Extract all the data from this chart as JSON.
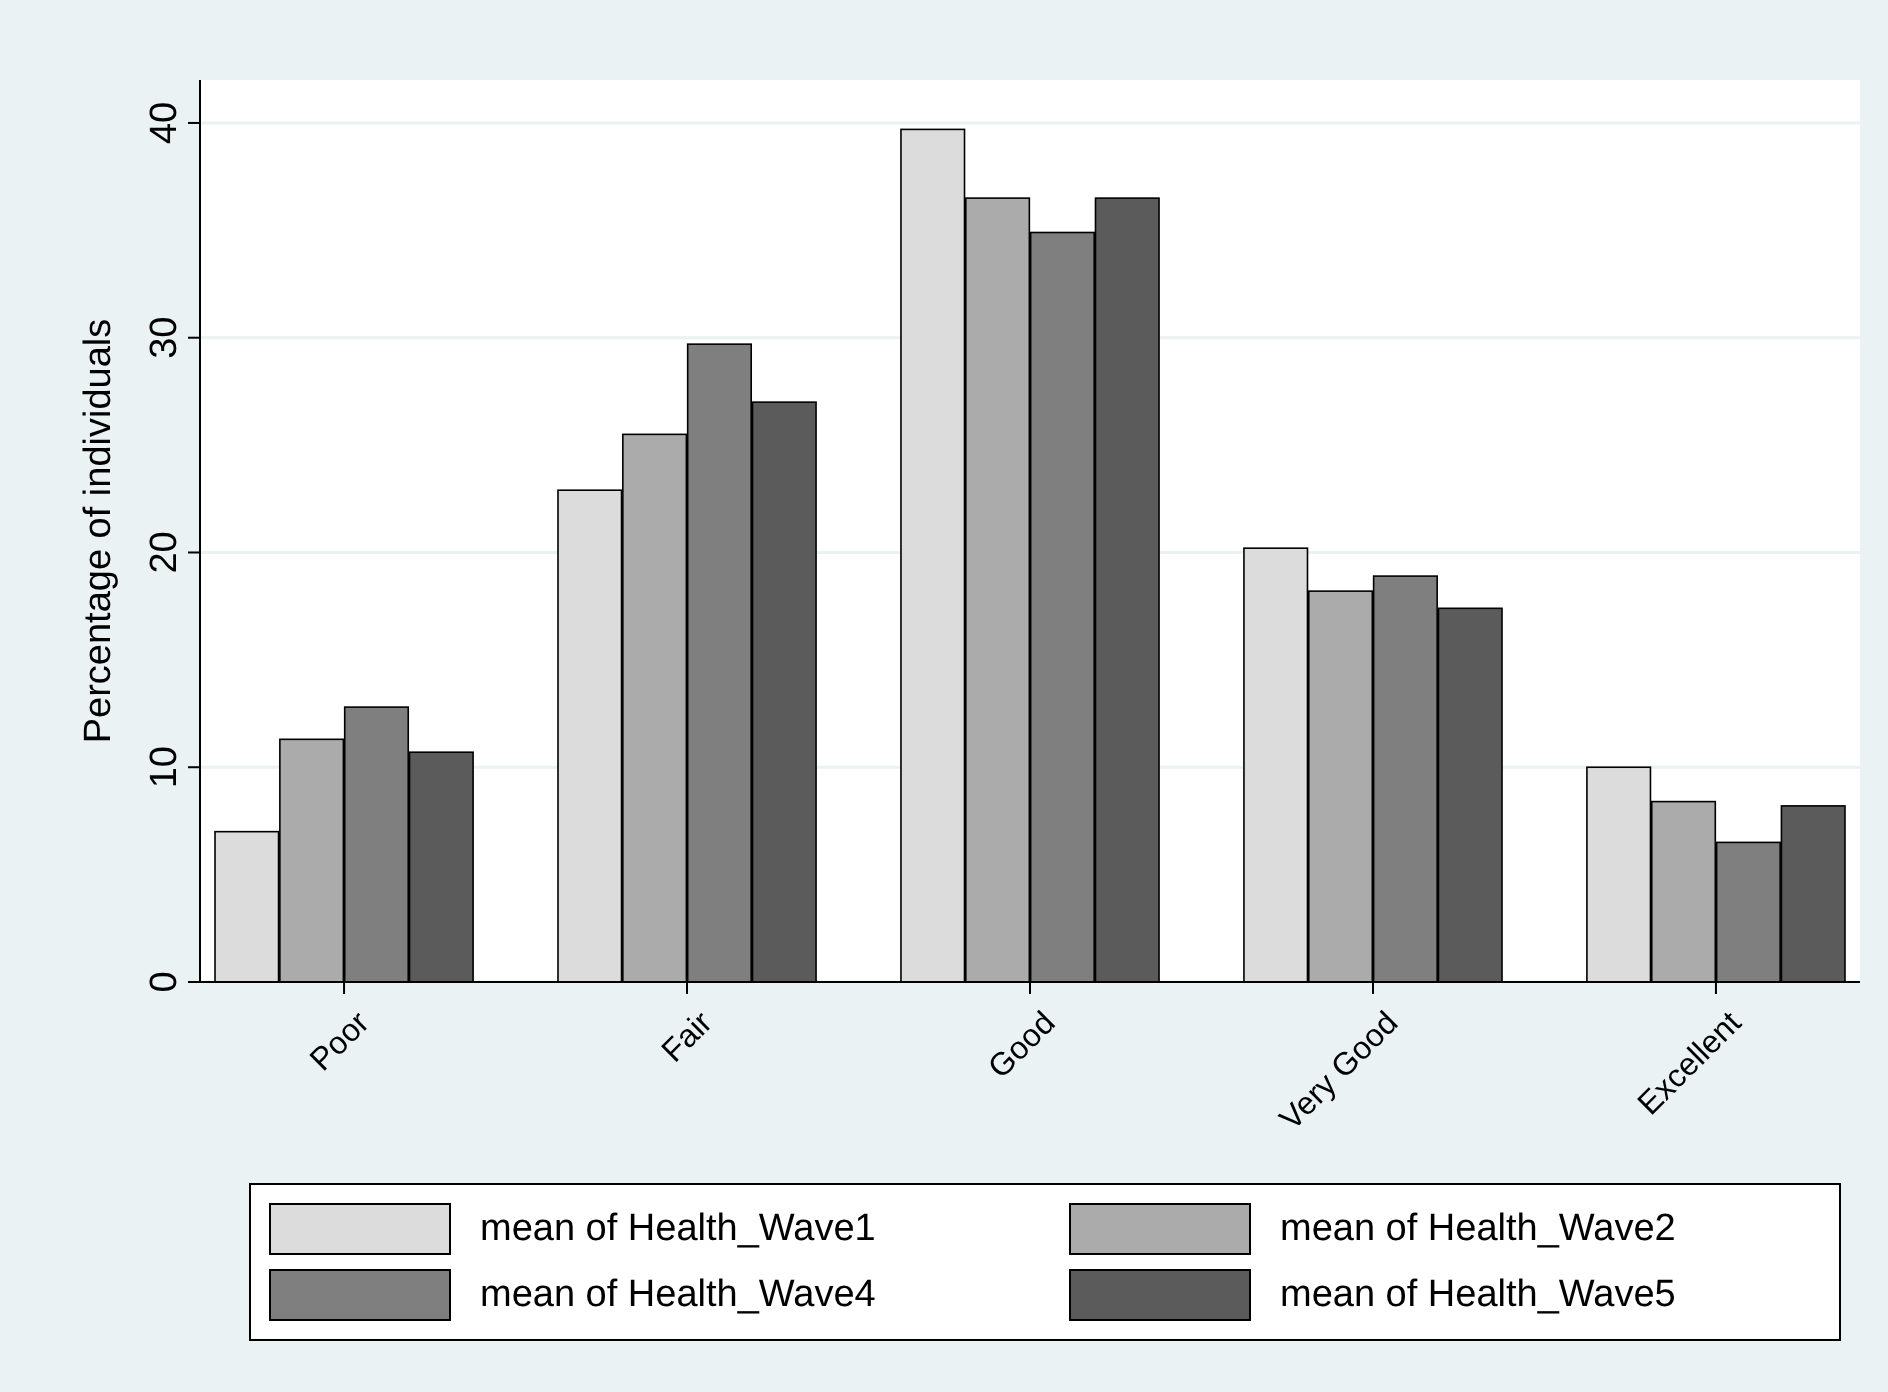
{
  "chart_data": {
    "type": "bar",
    "ylabel": "Percentage of individuals",
    "categories": [
      "Poor",
      "Fair",
      "Good",
      "Very Good",
      "Excellent"
    ],
    "series": [
      {
        "name": "mean of Health_Wave1",
        "color": "#dcdcdc",
        "values": [
          7.0,
          22.9,
          39.7,
          20.2,
          10.0
        ]
      },
      {
        "name": "mean of Health_Wave2",
        "color": "#ababab",
        "values": [
          11.3,
          25.5,
          36.5,
          18.2,
          8.4
        ]
      },
      {
        "name": "mean of Health_Wave4",
        "color": "#7f7f7f",
        "values": [
          12.8,
          29.7,
          34.9,
          18.9,
          6.5
        ]
      },
      {
        "name": "mean of Health_Wave5",
        "color": "#5b5b5b",
        "values": [
          10.7,
          27.0,
          36.5,
          17.4,
          8.2
        ]
      }
    ],
    "ylim": [
      0,
      42
    ],
    "yticks": [
      0,
      10,
      20,
      30,
      40
    ],
    "grid": "y",
    "legend": "bottom"
  }
}
